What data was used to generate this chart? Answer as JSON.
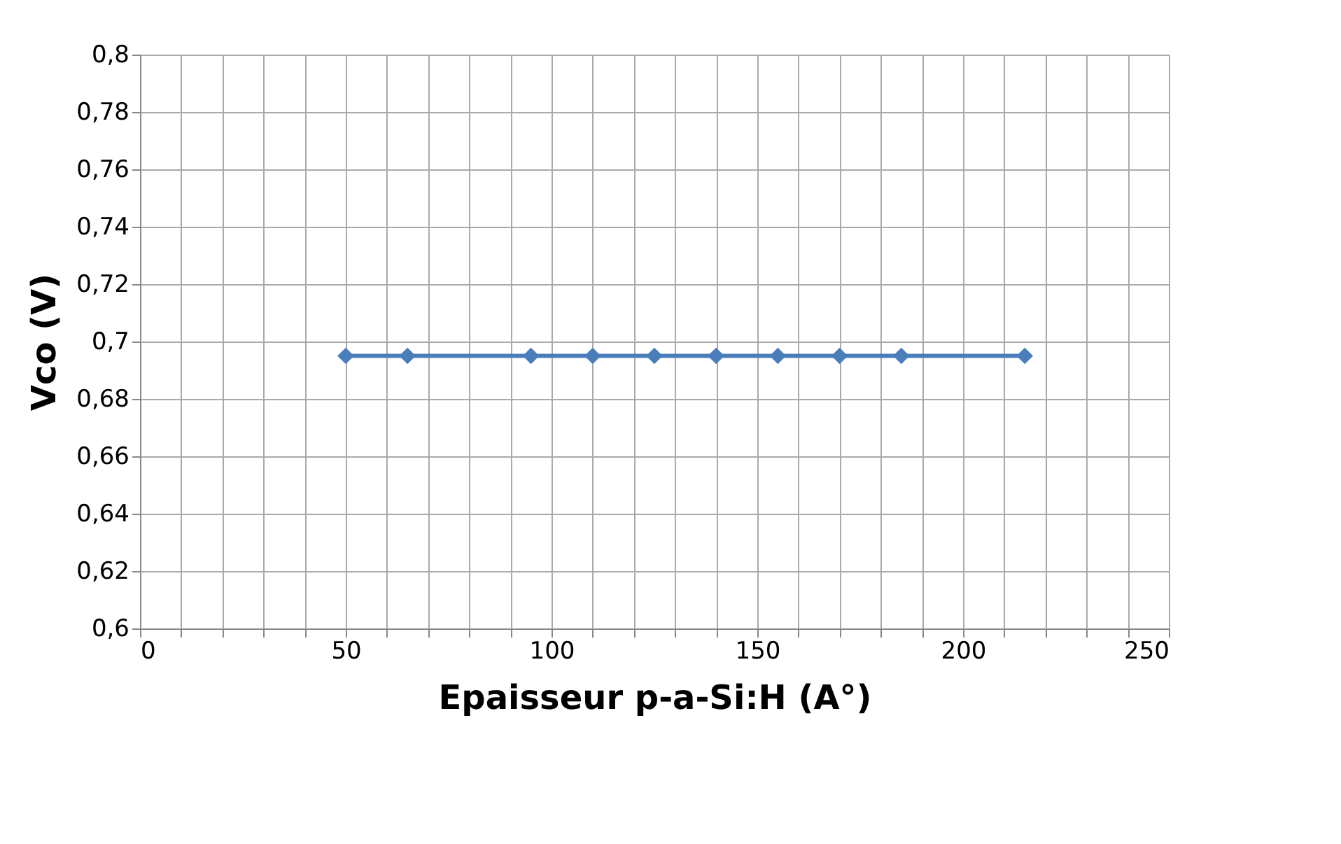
{
  "chart_data": {
    "type": "line",
    "xlabel": "Epaisseur p-a-Si:H (A°)",
    "ylabel": "Vco (V)",
    "x": [
      50,
      65,
      95,
      110,
      125,
      140,
      155,
      170,
      185,
      215
    ],
    "series": [
      {
        "color": "#4a7ebb",
        "values": [
          0.695,
          0.695,
          0.695,
          0.695,
          0.695,
          0.695,
          0.695,
          0.695,
          0.695,
          0.695
        ]
      }
    ],
    "xlim": [
      0,
      250
    ],
    "xticks": [
      0,
      {
        "value": 10,
        "label": null
      },
      {
        "value": 20,
        "label": null
      },
      {
        "value": 30,
        "label": null
      },
      {
        "value": 40,
        "label": null
      },
      50,
      {
        "value": 60,
        "label": null
      },
      {
        "value": 70,
        "label": null
      },
      {
        "value": 80,
        "label": null
      },
      {
        "value": 90,
        "label": null
      },
      100,
      {
        "value": 110,
        "label": null
      },
      {
        "value": 120,
        "label": null
      },
      {
        "value": 130,
        "label": null
      },
      {
        "value": 140,
        "label": null
      },
      150,
      {
        "value": 160,
        "label": null
      },
      {
        "value": 170,
        "label": null
      },
      {
        "value": 180,
        "label": null
      },
      {
        "value": 190,
        "label": null
      },
      200,
      {
        "value": 210,
        "label": null
      },
      {
        "value": 220,
        "label": null
      },
      {
        "value": 230,
        "label": null
      },
      {
        "value": 240,
        "label": null
      },
      250
    ],
    "ylim": [
      0.6,
      0.8
    ],
    "yticks": [
      {
        "value": 0.6,
        "label": "0,6"
      },
      {
        "value": 0.62,
        "label": "0,62"
      },
      {
        "value": 0.64,
        "label": "0,64"
      },
      {
        "value": 0.66,
        "label": "0,66"
      },
      {
        "value": 0.68,
        "label": "0,68"
      },
      {
        "value": 0.7,
        "label": "0,7"
      },
      {
        "value": 0.72,
        "label": "0,72"
      },
      {
        "value": 0.74,
        "label": "0,74"
      },
      {
        "value": 0.76,
        "label": "0,76"
      },
      {
        "value": 0.78,
        "label": "0,78"
      },
      {
        "value": 0.8,
        "label": "0,8"
      }
    ],
    "grid": true,
    "marker": "diamond",
    "line_style": "solid"
  }
}
